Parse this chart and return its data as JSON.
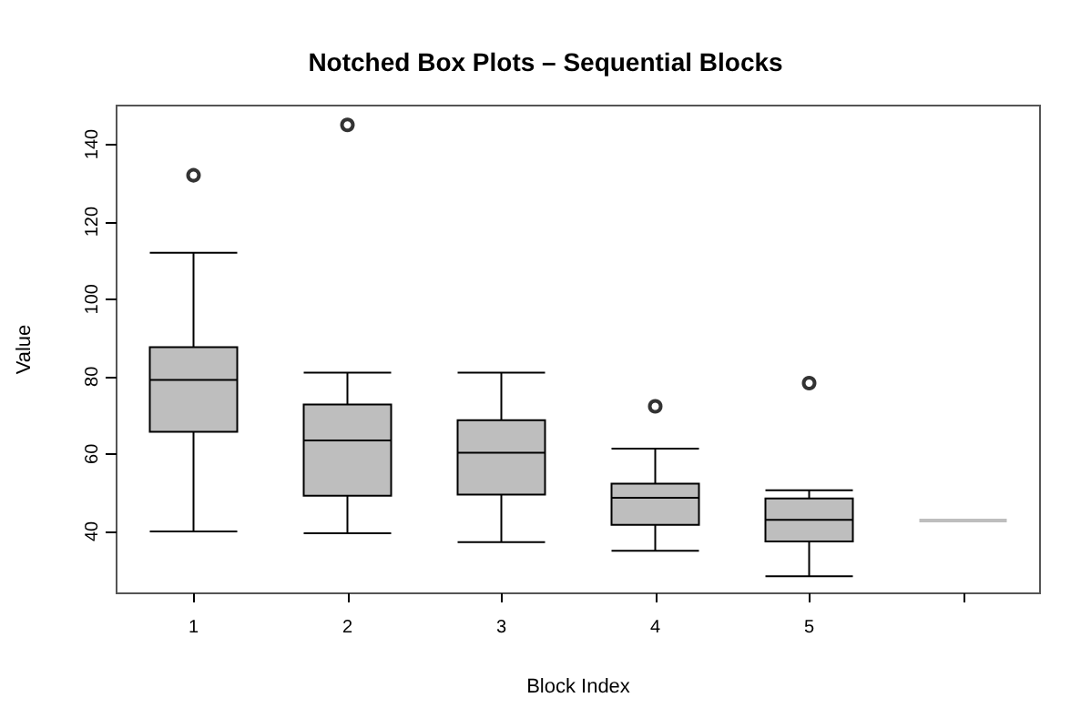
{
  "chart_data": {
    "type": "box",
    "title": "Notched Box Plots – Sequential Blocks",
    "xlabel": "Block Index",
    "ylabel": "Value",
    "categories": [
      "1",
      "2",
      "3",
      "4",
      "5",
      null
    ],
    "boxes": [
      {
        "low": 40,
        "q1": 65.7,
        "median": 79.1,
        "q3": 87.6,
        "high": 112,
        "outliers": [
          132
        ]
      },
      {
        "low": 39.5,
        "q1": 49.2,
        "median": 63.5,
        "q3": 72.8,
        "high": 81,
        "outliers": [
          145
        ]
      },
      {
        "low": 37.2,
        "q1": 49.5,
        "median": 60.3,
        "q3": 68.7,
        "high": 81
      },
      {
        "low": 35,
        "q1": 41.7,
        "median": 48.7,
        "q3": 52.3,
        "high": 61.4,
        "outliers": [
          72.3
        ]
      },
      {
        "low": 28.4,
        "q1": 37.4,
        "median": 43,
        "q3": 48.5,
        "high": 50.6,
        "outliers": [
          78.3
        ]
      },
      {
        "low": 42.8,
        "q1": 42.8,
        "median": 42.8,
        "q3": 42.8,
        "high": 42.8
      }
    ],
    "color": "#bebebe",
    "ylim": [
      24,
      150
    ],
    "yticks": [
      40,
      60,
      80,
      100,
      120,
      140
    ],
    "grid": false
  }
}
